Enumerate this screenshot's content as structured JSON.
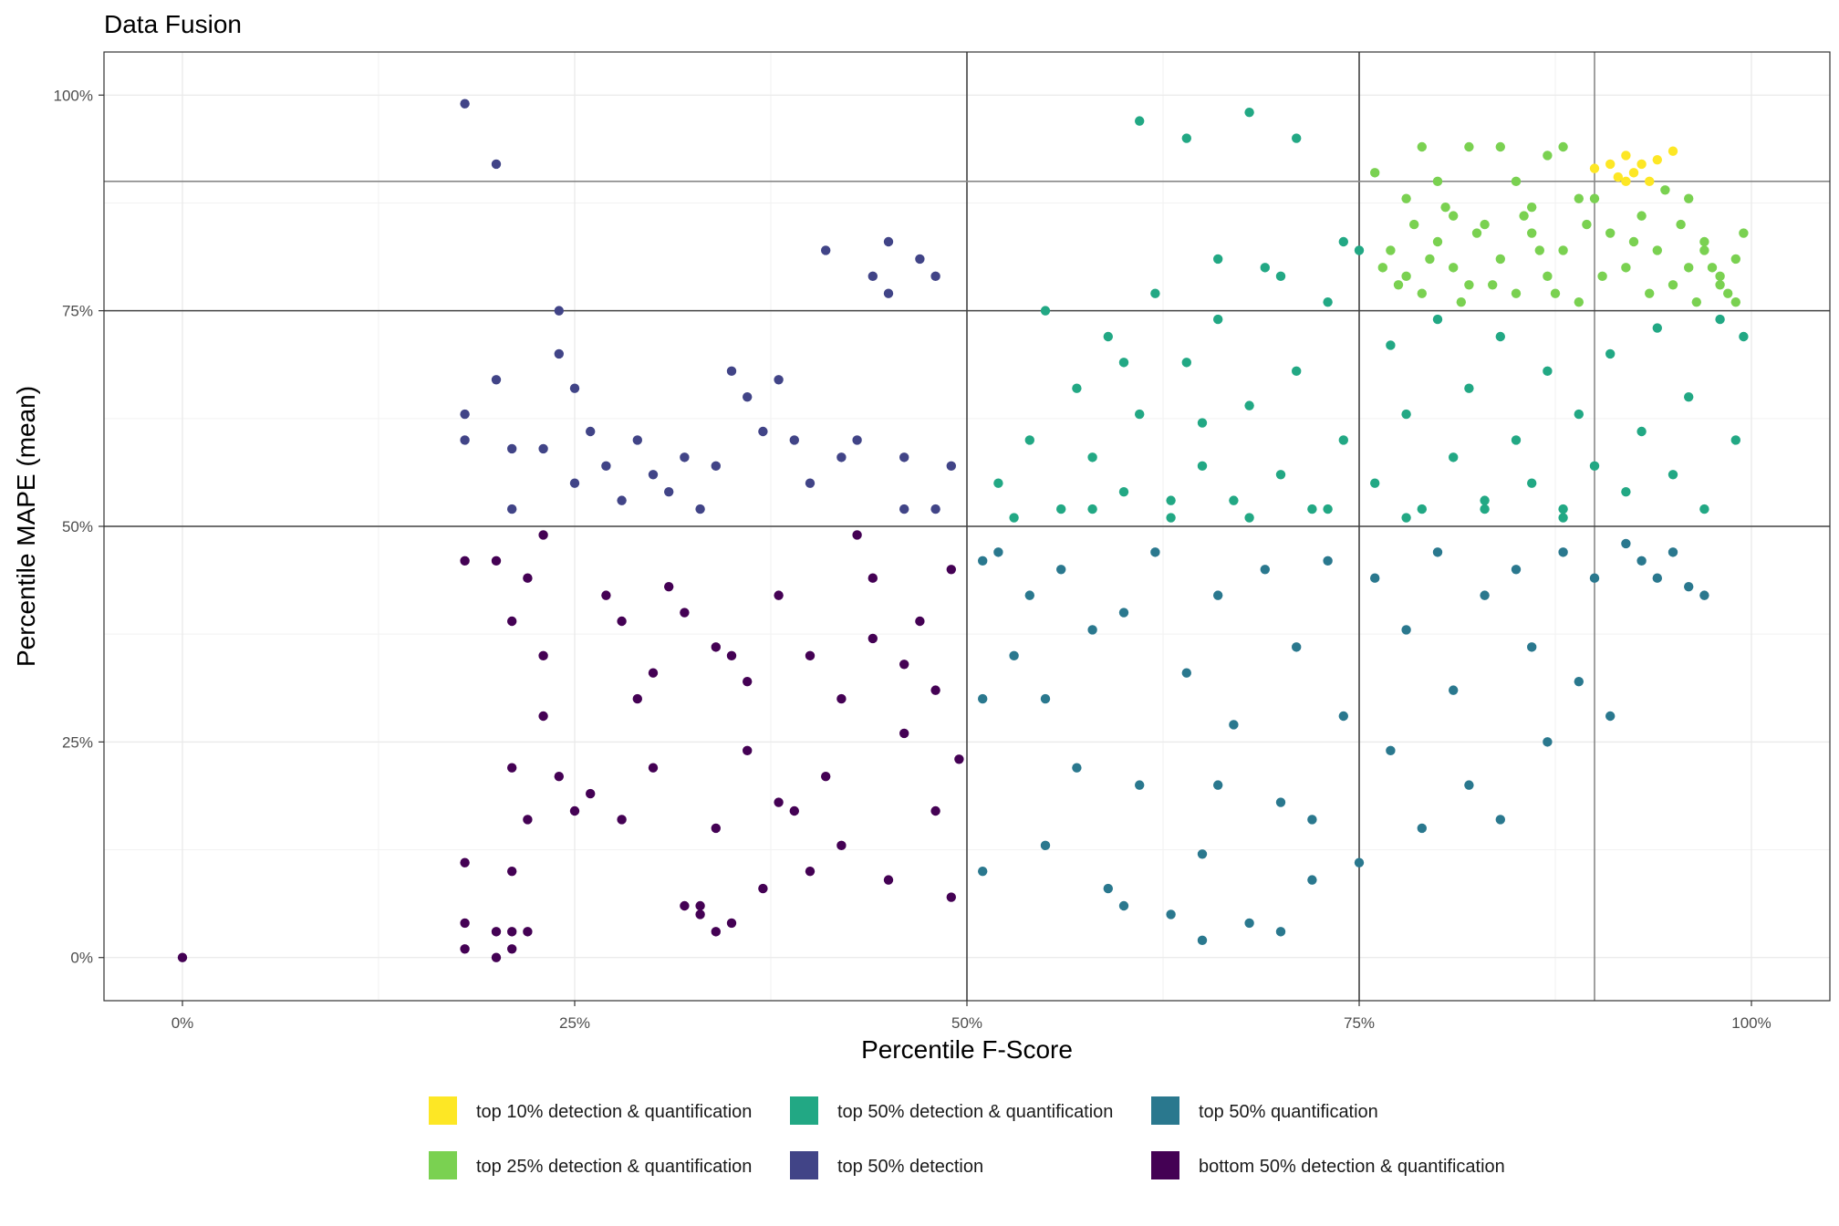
{
  "chart_data": {
    "type": "scatter",
    "title": "Data Fusion",
    "xlabel": "Percentile F-Score",
    "ylabel": "Percentile MAPE (mean)",
    "xlim": [
      -0.05,
      1.05
    ],
    "ylim": [
      -0.05,
      1.05
    ],
    "x_ticks": [
      {
        "value": 0,
        "label": "0%"
      },
      {
        "value": 0.25,
        "label": "25%"
      },
      {
        "value": 0.5,
        "label": "50%"
      },
      {
        "value": 0.75,
        "label": "75%"
      },
      {
        "value": 1,
        "label": "100%"
      }
    ],
    "y_ticks": [
      {
        "value": 0,
        "label": "0%"
      },
      {
        "value": 0.25,
        "label": "25%"
      },
      {
        "value": 0.5,
        "label": "50%"
      },
      {
        "value": 0.75,
        "label": "75%"
      },
      {
        "value": 1,
        "label": "100%"
      }
    ],
    "reference_lines": {
      "vertical": [
        0.5,
        0.75,
        0.9
      ],
      "horizontal": [
        0.5,
        0.75,
        0.9
      ]
    },
    "grid": true,
    "legend_position": "bottom",
    "series": [
      {
        "name": "top 10% detection & quantification",
        "color": "#FDE725",
        "points": [
          [
            0.91,
            0.92
          ],
          [
            0.92,
            0.93
          ],
          [
            0.93,
            0.92
          ],
          [
            0.94,
            0.925
          ],
          [
            0.95,
            0.935
          ],
          [
            0.915,
            0.905
          ],
          [
            0.925,
            0.91
          ],
          [
            0.9,
            0.915
          ],
          [
            0.935,
            0.9
          ],
          [
            0.92,
            0.9
          ]
        ]
      },
      {
        "name": "top 25% detection & quantification",
        "color": "#7AD151",
        "points": [
          [
            0.76,
            0.91
          ],
          [
            0.78,
            0.88
          ],
          [
            0.79,
            0.94
          ],
          [
            0.8,
            0.9
          ],
          [
            0.81,
            0.86
          ],
          [
            0.82,
            0.94
          ],
          [
            0.84,
            0.94
          ],
          [
            0.85,
            0.9
          ],
          [
            0.86,
            0.87
          ],
          [
            0.87,
            0.93
          ],
          [
            0.88,
            0.94
          ],
          [
            0.89,
            0.88
          ],
          [
            0.77,
            0.82
          ],
          [
            0.78,
            0.79
          ],
          [
            0.79,
            0.77
          ],
          [
            0.8,
            0.83
          ],
          [
            0.81,
            0.8
          ],
          [
            0.82,
            0.78
          ],
          [
            0.83,
            0.85
          ],
          [
            0.84,
            0.81
          ],
          [
            0.85,
            0.77
          ],
          [
            0.86,
            0.84
          ],
          [
            0.87,
            0.79
          ],
          [
            0.88,
            0.82
          ],
          [
            0.89,
            0.76
          ],
          [
            0.9,
            0.88
          ],
          [
            0.91,
            0.84
          ],
          [
            0.92,
            0.8
          ],
          [
            0.93,
            0.86
          ],
          [
            0.94,
            0.82
          ],
          [
            0.95,
            0.78
          ],
          [
            0.96,
            0.88
          ],
          [
            0.97,
            0.83
          ],
          [
            0.98,
            0.79
          ],
          [
            0.99,
            0.81
          ],
          [
            0.995,
            0.84
          ],
          [
            0.985,
            0.77
          ],
          [
            0.975,
            0.8
          ],
          [
            0.965,
            0.76
          ],
          [
            0.955,
            0.85
          ],
          [
            0.945,
            0.89
          ],
          [
            0.935,
            0.77
          ],
          [
            0.925,
            0.83
          ],
          [
            0.905,
            0.79
          ],
          [
            0.895,
            0.85
          ],
          [
            0.875,
            0.77
          ],
          [
            0.865,
            0.82
          ],
          [
            0.855,
            0.86
          ],
          [
            0.835,
            0.78
          ],
          [
            0.825,
            0.84
          ],
          [
            0.815,
            0.76
          ],
          [
            0.805,
            0.87
          ],
          [
            0.795,
            0.81
          ],
          [
            0.785,
            0.85
          ],
          [
            0.775,
            0.78
          ],
          [
            0.765,
            0.8
          ],
          [
            0.99,
            0.76
          ],
          [
            0.98,
            0.78
          ],
          [
            0.97,
            0.82
          ],
          [
            0.96,
            0.8
          ]
        ]
      },
      {
        "name": "top 50% detection & quantification",
        "color": "#22A884",
        "points": [
          [
            0.61,
            0.97
          ],
          [
            0.64,
            0.95
          ],
          [
            0.68,
            0.98
          ],
          [
            0.71,
            0.95
          ],
          [
            0.52,
            0.55
          ],
          [
            0.54,
            0.6
          ],
          [
            0.55,
            0.75
          ],
          [
            0.56,
            0.52
          ],
          [
            0.57,
            0.66
          ],
          [
            0.58,
            0.58
          ],
          [
            0.59,
            0.72
          ],
          [
            0.6,
            0.54
          ],
          [
            0.61,
            0.63
          ],
          [
            0.62,
            0.77
          ],
          [
            0.63,
            0.51
          ],
          [
            0.64,
            0.69
          ],
          [
            0.65,
            0.57
          ],
          [
            0.66,
            0.74
          ],
          [
            0.67,
            0.53
          ],
          [
            0.68,
            0.64
          ],
          [
            0.69,
            0.8
          ],
          [
            0.7,
            0.56
          ],
          [
            0.71,
            0.68
          ],
          [
            0.72,
            0.52
          ],
          [
            0.73,
            0.76
          ],
          [
            0.74,
            0.6
          ],
          [
            0.75,
            0.82
          ],
          [
            0.76,
            0.55
          ],
          [
            0.77,
            0.71
          ],
          [
            0.78,
            0.63
          ],
          [
            0.79,
            0.52
          ],
          [
            0.8,
            0.74
          ],
          [
            0.81,
            0.58
          ],
          [
            0.82,
            0.66
          ],
          [
            0.83,
            0.53
          ],
          [
            0.84,
            0.72
          ],
          [
            0.85,
            0.6
          ],
          [
            0.86,
            0.55
          ],
          [
            0.87,
            0.68
          ],
          [
            0.88,
            0.52
          ],
          [
            0.89,
            0.63
          ],
          [
            0.9,
            0.57
          ],
          [
            0.91,
            0.7
          ],
          [
            0.92,
            0.54
          ],
          [
            0.93,
            0.61
          ],
          [
            0.94,
            0.73
          ],
          [
            0.95,
            0.56
          ],
          [
            0.96,
            0.65
          ],
          [
            0.97,
            0.52
          ],
          [
            0.98,
            0.74
          ],
          [
            0.99,
            0.6
          ],
          [
            0.995,
            0.72
          ],
          [
            0.53,
            0.51
          ],
          [
            0.58,
            0.52
          ],
          [
            0.63,
            0.53
          ],
          [
            0.68,
            0.51
          ],
          [
            0.73,
            0.52
          ],
          [
            0.78,
            0.51
          ],
          [
            0.83,
            0.52
          ],
          [
            0.88,
            0.51
          ],
          [
            0.66,
            0.81
          ],
          [
            0.7,
            0.79
          ],
          [
            0.74,
            0.83
          ],
          [
            0.6,
            0.69
          ],
          [
            0.65,
            0.62
          ]
        ]
      },
      {
        "name": "top 50% detection",
        "color": "#414487",
        "points": [
          [
            0.18,
            0.99
          ],
          [
            0.2,
            0.92
          ],
          [
            0.18,
            0.63
          ],
          [
            0.18,
            0.6
          ],
          [
            0.2,
            0.67
          ],
          [
            0.21,
            0.59
          ],
          [
            0.21,
            0.52
          ],
          [
            0.23,
            0.59
          ],
          [
            0.24,
            0.7
          ],
          [
            0.24,
            0.75
          ],
          [
            0.25,
            0.66
          ],
          [
            0.25,
            0.55
          ],
          [
            0.26,
            0.61
          ],
          [
            0.27,
            0.57
          ],
          [
            0.28,
            0.53
          ],
          [
            0.29,
            0.6
          ],
          [
            0.3,
            0.56
          ],
          [
            0.31,
            0.54
          ],
          [
            0.32,
            0.58
          ],
          [
            0.33,
            0.52
          ],
          [
            0.35,
            0.68
          ],
          [
            0.36,
            0.65
          ],
          [
            0.38,
            0.67
          ],
          [
            0.39,
            0.6
          ],
          [
            0.4,
            0.55
          ],
          [
            0.41,
            0.82
          ],
          [
            0.43,
            0.6
          ],
          [
            0.44,
            0.79
          ],
          [
            0.45,
            0.83
          ],
          [
            0.45,
            0.77
          ],
          [
            0.46,
            0.58
          ],
          [
            0.47,
            0.81
          ],
          [
            0.48,
            0.79
          ],
          [
            0.49,
            0.57
          ],
          [
            0.46,
            0.52
          ],
          [
            0.48,
            0.52
          ],
          [
            0.42,
            0.58
          ],
          [
            0.34,
            0.57
          ],
          [
            0.37,
            0.61
          ]
        ]
      },
      {
        "name": "top 50% quantification",
        "color": "#2A788E",
        "points": [
          [
            0.52,
            0.47
          ],
          [
            0.53,
            0.35
          ],
          [
            0.54,
            0.42
          ],
          [
            0.55,
            0.3
          ],
          [
            0.56,
            0.45
          ],
          [
            0.57,
            0.22
          ],
          [
            0.58,
            0.38
          ],
          [
            0.59,
            0.08
          ],
          [
            0.6,
            0.4
          ],
          [
            0.61,
            0.2
          ],
          [
            0.62,
            0.47
          ],
          [
            0.63,
            0.05
          ],
          [
            0.64,
            0.33
          ],
          [
            0.65,
            0.12
          ],
          [
            0.66,
            0.42
          ],
          [
            0.67,
            0.27
          ],
          [
            0.68,
            0.04
          ],
          [
            0.69,
            0.45
          ],
          [
            0.7,
            0.18
          ],
          [
            0.71,
            0.36
          ],
          [
            0.72,
            0.09
          ],
          [
            0.73,
            0.46
          ],
          [
            0.74,
            0.28
          ],
          [
            0.75,
            0.11
          ],
          [
            0.76,
            0.44
          ],
          [
            0.77,
            0.24
          ],
          [
            0.78,
            0.38
          ],
          [
            0.79,
            0.15
          ],
          [
            0.8,
            0.47
          ],
          [
            0.81,
            0.31
          ],
          [
            0.82,
            0.2
          ],
          [
            0.83,
            0.42
          ],
          [
            0.84,
            0.16
          ],
          [
            0.85,
            0.45
          ],
          [
            0.86,
            0.36
          ],
          [
            0.87,
            0.25
          ],
          [
            0.88,
            0.47
          ],
          [
            0.89,
            0.32
          ],
          [
            0.9,
            0.44
          ],
          [
            0.91,
            0.28
          ],
          [
            0.92,
            0.48
          ],
          [
            0.93,
            0.46
          ],
          [
            0.94,
            0.44
          ],
          [
            0.95,
            0.47
          ],
          [
            0.96,
            0.43
          ],
          [
            0.97,
            0.42
          ],
          [
            0.51,
            0.1
          ],
          [
            0.51,
            0.3
          ],
          [
            0.51,
            0.46
          ],
          [
            0.55,
            0.13
          ],
          [
            0.6,
            0.06
          ],
          [
            0.65,
            0.02
          ],
          [
            0.7,
            0.03
          ],
          [
            0.66,
            0.2
          ],
          [
            0.72,
            0.16
          ]
        ]
      },
      {
        "name": "bottom 50% detection & quantification",
        "color": "#440154",
        "points": [
          [
            0.0,
            0.0
          ],
          [
            0.18,
            0.46
          ],
          [
            0.18,
            0.11
          ],
          [
            0.18,
            0.04
          ],
          [
            0.18,
            0.01
          ],
          [
            0.2,
            0.46
          ],
          [
            0.2,
            0.03
          ],
          [
            0.2,
            0.0
          ],
          [
            0.21,
            0.39
          ],
          [
            0.21,
            0.22
          ],
          [
            0.21,
            0.1
          ],
          [
            0.21,
            0.03
          ],
          [
            0.21,
            0.01
          ],
          [
            0.22,
            0.44
          ],
          [
            0.22,
            0.16
          ],
          [
            0.22,
            0.03
          ],
          [
            0.23,
            0.49
          ],
          [
            0.23,
            0.35
          ],
          [
            0.23,
            0.28
          ],
          [
            0.24,
            0.21
          ],
          [
            0.25,
            0.17
          ],
          [
            0.26,
            0.19
          ],
          [
            0.27,
            0.42
          ],
          [
            0.28,
            0.39
          ],
          [
            0.29,
            0.3
          ],
          [
            0.3,
            0.22
          ],
          [
            0.31,
            0.43
          ],
          [
            0.32,
            0.06
          ],
          [
            0.33,
            0.05
          ],
          [
            0.34,
            0.15
          ],
          [
            0.35,
            0.04
          ],
          [
            0.36,
            0.32
          ],
          [
            0.37,
            0.08
          ],
          [
            0.38,
            0.42
          ],
          [
            0.39,
            0.17
          ],
          [
            0.4,
            0.35
          ],
          [
            0.41,
            0.21
          ],
          [
            0.42,
            0.13
          ],
          [
            0.43,
            0.49
          ],
          [
            0.44,
            0.37
          ],
          [
            0.45,
            0.09
          ],
          [
            0.46,
            0.26
          ],
          [
            0.47,
            0.39
          ],
          [
            0.48,
            0.17
          ],
          [
            0.49,
            0.45
          ],
          [
            0.495,
            0.23
          ],
          [
            0.49,
            0.07
          ],
          [
            0.34,
            0.36
          ],
          [
            0.35,
            0.35
          ],
          [
            0.33,
            0.06
          ],
          [
            0.34,
            0.03
          ],
          [
            0.32,
            0.4
          ],
          [
            0.36,
            0.24
          ],
          [
            0.38,
            0.18
          ],
          [
            0.4,
            0.1
          ],
          [
            0.42,
            0.3
          ],
          [
            0.44,
            0.44
          ],
          [
            0.46,
            0.34
          ],
          [
            0.48,
            0.31
          ],
          [
            0.3,
            0.33
          ],
          [
            0.28,
            0.16
          ]
        ]
      }
    ]
  }
}
